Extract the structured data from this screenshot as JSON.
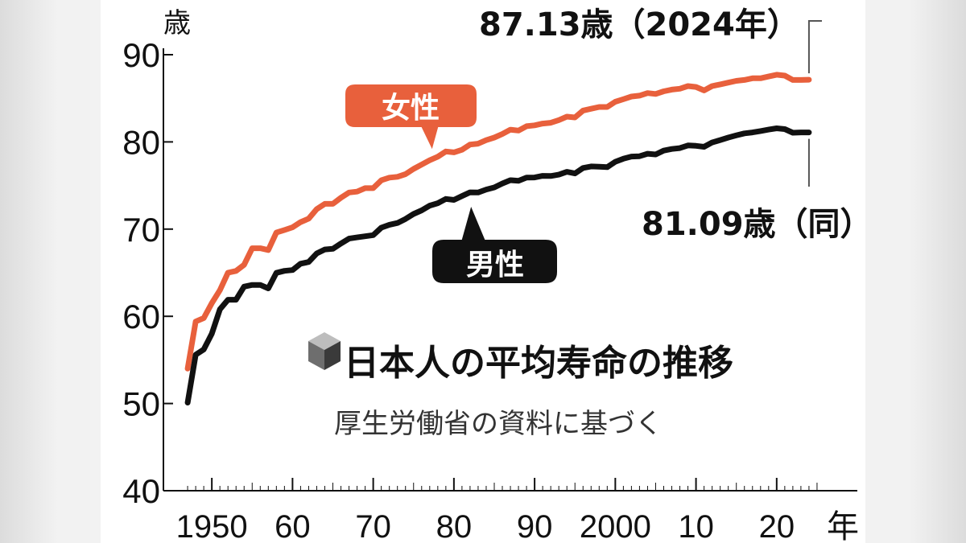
{
  "colors": {
    "female": "#e8603c",
    "male": "#111111",
    "axis": "#111111"
  },
  "chart_data": {
    "type": "line",
    "title": "日本人の平均寿命の推移",
    "subtitle": "厚生労働省の資料に基づく",
    "ylabel": "歳",
    "xlabel": "年",
    "ylim": [
      40,
      90
    ],
    "xlim": [
      1944,
      2027
    ],
    "yticks": [
      {
        "value": 90,
        "label": "90"
      },
      {
        "value": 80,
        "label": "80"
      },
      {
        "value": 70,
        "label": "70"
      },
      {
        "value": 60,
        "label": "60"
      },
      {
        "value": 50,
        "label": "50"
      },
      {
        "value": 40,
        "label": "40"
      }
    ],
    "xticks": [
      {
        "value": 1950,
        "label": "1950"
      },
      {
        "value": 1960,
        "label": "60"
      },
      {
        "value": 1970,
        "label": "70"
      },
      {
        "value": 1980,
        "label": "80"
      },
      {
        "value": 1990,
        "label": "90"
      },
      {
        "value": 2000,
        "label": "2000"
      },
      {
        "value": 2010,
        "label": "10"
      },
      {
        "value": 2020,
        "label": "20"
      }
    ],
    "x": [
      1947,
      1948,
      1949,
      1950,
      1951,
      1952,
      1953,
      1954,
      1955,
      1956,
      1957,
      1958,
      1959,
      1960,
      1961,
      1962,
      1963,
      1964,
      1965,
      1966,
      1967,
      1968,
      1969,
      1970,
      1971,
      1972,
      1973,
      1974,
      1975,
      1976,
      1977,
      1978,
      1979,
      1980,
      1981,
      1982,
      1983,
      1984,
      1985,
      1986,
      1987,
      1988,
      1989,
      1990,
      1991,
      1992,
      1993,
      1994,
      1995,
      1996,
      1997,
      1998,
      1999,
      2000,
      2001,
      2002,
      2003,
      2004,
      2005,
      2006,
      2007,
      2008,
      2009,
      2010,
      2011,
      2012,
      2013,
      2014,
      2015,
      2016,
      2017,
      2018,
      2019,
      2020,
      2021,
      2022,
      2023,
      2024
    ],
    "series": [
      {
        "name": "女性",
        "key": "female",
        "values": [
          54.0,
          59.4,
          59.8,
          61.5,
          63.0,
          65.0,
          65.2,
          65.9,
          67.8,
          67.8,
          67.6,
          69.6,
          69.9,
          70.2,
          70.8,
          71.2,
          72.3,
          72.9,
          72.9,
          73.6,
          74.2,
          74.3,
          74.7,
          74.7,
          75.6,
          75.9,
          76.0,
          76.3,
          76.9,
          77.4,
          77.9,
          78.3,
          78.9,
          78.8,
          79.1,
          79.7,
          79.8,
          80.2,
          80.5,
          80.9,
          81.4,
          81.3,
          81.8,
          81.9,
          82.1,
          82.2,
          82.5,
          82.9,
          82.8,
          83.6,
          83.8,
          84.0,
          84.0,
          84.6,
          84.9,
          85.2,
          85.3,
          85.6,
          85.5,
          85.8,
          86.0,
          86.1,
          86.4,
          86.3,
          85.9,
          86.4,
          86.6,
          86.8,
          87.0,
          87.1,
          87.3,
          87.3,
          87.5,
          87.7,
          87.6,
          87.1,
          87.1,
          87.13
        ]
      },
      {
        "name": "男性",
        "key": "male",
        "values": [
          50.1,
          55.6,
          56.2,
          58.0,
          60.8,
          61.9,
          61.9,
          63.4,
          63.6,
          63.6,
          63.2,
          64.98,
          65.21,
          65.3,
          66.03,
          66.23,
          67.21,
          67.67,
          67.74,
          68.35,
          68.91,
          69.05,
          69.18,
          69.31,
          70.17,
          70.5,
          70.7,
          71.16,
          71.73,
          72.15,
          72.69,
          72.97,
          73.46,
          73.35,
          73.79,
          74.22,
          74.2,
          74.54,
          74.78,
          75.23,
          75.61,
          75.54,
          75.91,
          75.92,
          76.11,
          76.09,
          76.25,
          76.57,
          76.38,
          77.01,
          77.19,
          77.16,
          77.1,
          77.72,
          78.07,
          78.32,
          78.36,
          78.64,
          78.56,
          79.0,
          79.19,
          79.29,
          79.59,
          79.55,
          79.44,
          79.94,
          80.21,
          80.5,
          80.75,
          80.98,
          81.09,
          81.25,
          81.41,
          81.56,
          81.47,
          81.05,
          81.09,
          81.09
        ]
      }
    ],
    "annotations": {
      "female_end": "87.13歳（2024年）",
      "male_end": "81.09歳（同）"
    }
  }
}
